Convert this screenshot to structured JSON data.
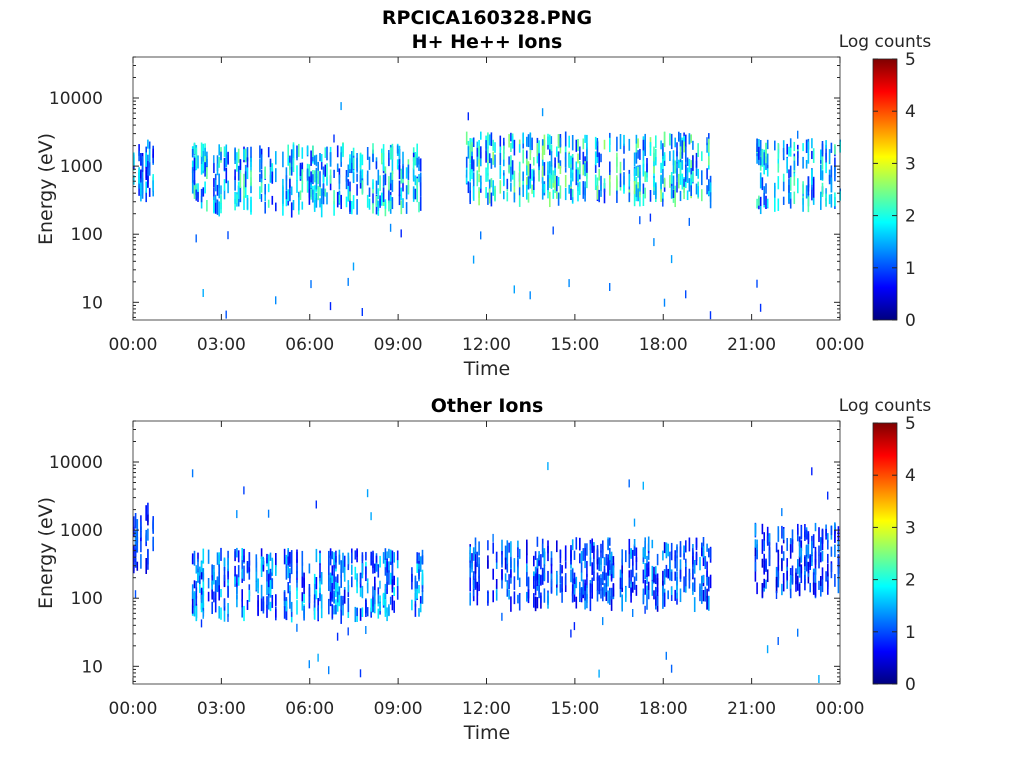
{
  "figure": {
    "title": "RPCICA160328.PNG"
  },
  "colormap": {
    "name": "jet",
    "stops": [
      "#00007f",
      "#0000ff",
      "#007fff",
      "#00ffff",
      "#7fff7f",
      "#ffff00",
      "#ff7f00",
      "#ff0000",
      "#7f0000"
    ]
  },
  "chart_data": [
    {
      "type": "heatmap",
      "title": "H+ He++ Ions",
      "xlabel": "Time",
      "ylabel": "Energy (eV)",
      "yscale": "log",
      "ylim": [
        5.5,
        40000
      ],
      "xlim": [
        "00:00",
        "24:00"
      ],
      "xticks": [
        "00:00",
        "03:00",
        "06:00",
        "09:00",
        "12:00",
        "15:00",
        "18:00",
        "21:00",
        "00:00"
      ],
      "yticks": [
        10,
        100,
        1000,
        10000
      ],
      "ytick_labels": [
        "10",
        "100",
        "1000",
        "10000"
      ],
      "colorbar": {
        "label": "Log counts",
        "range": [
          0,
          5
        ],
        "ticks": [
          "0",
          "1",
          "2",
          "3",
          "4",
          "5"
        ]
      },
      "data_gaps_hours": [
        [
          0.75,
          2.0
        ],
        [
          9.8,
          11.3
        ],
        [
          19.6,
          21.1
        ]
      ],
      "activity_segments": [
        {
          "start": 0.0,
          "end": 0.7,
          "center_ev": 900,
          "level": 1.8
        },
        {
          "start": 2.0,
          "end": 9.8,
          "center_ev": 700,
          "level": 2.2
        },
        {
          "start": 11.3,
          "end": 19.6,
          "center_ev": 1000,
          "level": 2.4
        },
        {
          "start": 21.1,
          "end": 24.0,
          "center_ev": 800,
          "level": 2.2
        }
      ],
      "grid": false
    },
    {
      "type": "heatmap",
      "title": "Other Ions",
      "xlabel": "Time",
      "ylabel": "Energy (eV)",
      "yscale": "log",
      "ylim": [
        5.5,
        40000
      ],
      "xlim": [
        "00:00",
        "24:00"
      ],
      "xticks": [
        "00:00",
        "03:00",
        "06:00",
        "09:00",
        "12:00",
        "15:00",
        "18:00",
        "21:00",
        "00:00"
      ],
      "yticks": [
        10,
        100,
        1000,
        10000
      ],
      "ytick_labels": [
        "10",
        "100",
        "1000",
        "10000"
      ],
      "colorbar": {
        "label": "Log counts",
        "range": [
          0,
          5
        ],
        "ticks": [
          "0",
          "1",
          "2",
          "3",
          "4",
          "5"
        ]
      },
      "data_gaps_hours": [
        [
          0.75,
          2.0
        ],
        [
          9.8,
          11.3
        ],
        [
          19.6,
          21.1
        ]
      ],
      "activity_segments": [
        {
          "start": 0.0,
          "end": 0.7,
          "center_ev": 800,
          "level": 1.2
        },
        {
          "start": 2.0,
          "end": 9.8,
          "center_ev": 170,
          "level": 1.7
        },
        {
          "start": 11.3,
          "end": 19.6,
          "center_ev": 250,
          "level": 1.4
        },
        {
          "start": 21.1,
          "end": 24.0,
          "center_ev": 400,
          "level": 1.3
        }
      ],
      "grid": false
    }
  ]
}
